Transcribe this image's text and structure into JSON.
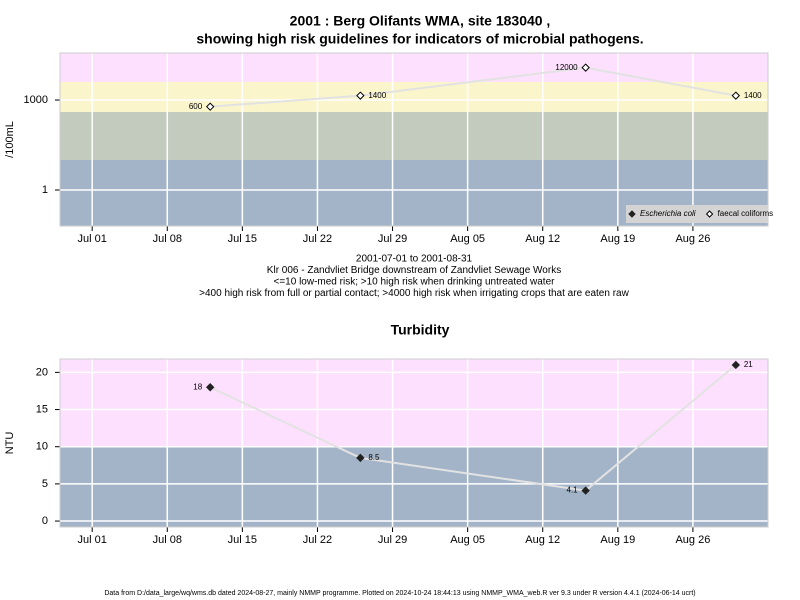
{
  "chart_data": [
    {
      "type": "line",
      "title": [
        "2001 : Berg Olifants WMA, site 183040 ,",
        "showing high risk guidelines for indicators of microbial pathogens."
      ],
      "ylabel": "/100mL",
      "caption": [
        "2001-07-01 to 2001-08-31",
        "Klr 006 - Zandvliet Bridge downstream of Zandvliet Sewage Works",
        "<=10 low-med risk; >10 high risk when drinking untreated water",
        ">400 high risk from full or partial contact; >4000 high risk when irrigating crops that are eaten raw"
      ],
      "x": [
        "2001-07-12",
        "2001-07-26",
        "2001-08-16",
        "2001-08-30"
      ],
      "xlim": [
        "2001-06-28",
        "2001-09-02"
      ],
      "xticks": [
        {
          "value": "2001-07-01",
          "label": "Jul 01"
        },
        {
          "value": "2001-07-08",
          "label": "Jul 08"
        },
        {
          "value": "2001-07-15",
          "label": "Jul 15"
        },
        {
          "value": "2001-07-22",
          "label": "Jul 22"
        },
        {
          "value": "2001-07-29",
          "label": "Jul 29"
        },
        {
          "value": "2001-08-05",
          "label": "Aug 05"
        },
        {
          "value": "2001-08-12",
          "label": "Aug 12"
        },
        {
          "value": "2001-08-19",
          "label": "Aug 19"
        },
        {
          "value": "2001-08-26",
          "label": "Aug 26"
        }
      ],
      "ylog": true,
      "ylim": [
        0.063,
        37000
      ],
      "yticks": [
        1,
        1000
      ],
      "thresholds": [
        10,
        400,
        4000
      ],
      "band_colors": [
        "#a3b4c9",
        "#c2cbbd",
        "#fbf5cc",
        "#fde0fd"
      ],
      "grid": true,
      "legend": "bottom-right",
      "series": [
        {
          "name": "Escherichia coli",
          "color": "#222222",
          "marker": "filled",
          "values": [
            null,
            null,
            null,
            null
          ]
        },
        {
          "name": "faecal coliforms",
          "color": "#000000",
          "marker": "open",
          "values": [
            600,
            1400,
            12000,
            1400
          ]
        }
      ]
    },
    {
      "type": "line",
      "title": [
        "Turbidity"
      ],
      "ylabel": "NTU",
      "x": [
        "2001-07-12",
        "2001-07-26",
        "2001-08-16",
        "2001-08-30"
      ],
      "xlim": [
        "2001-06-28",
        "2001-09-02"
      ],
      "xticks": [
        {
          "value": "2001-07-01",
          "label": "Jul 01"
        },
        {
          "value": "2001-07-08",
          "label": "Jul 08"
        },
        {
          "value": "2001-07-15",
          "label": "Jul 15"
        },
        {
          "value": "2001-07-22",
          "label": "Jul 22"
        },
        {
          "value": "2001-07-29",
          "label": "Jul 29"
        },
        {
          "value": "2001-08-05",
          "label": "Aug 05"
        },
        {
          "value": "2001-08-12",
          "label": "Aug 12"
        },
        {
          "value": "2001-08-19",
          "label": "Aug 19"
        },
        {
          "value": "2001-08-26",
          "label": "Aug 26"
        }
      ],
      "ylog": false,
      "ylim": [
        -0.8,
        21.8
      ],
      "yticks": [
        0,
        5,
        10,
        15,
        20
      ],
      "thresholds": [
        10
      ],
      "band_colors": [
        "#a3b4c9",
        "#fde0fd"
      ],
      "grid": true,
      "series": [
        {
          "name": "Turbidity",
          "color": "#222222",
          "marker": "filled",
          "values": [
            18,
            8.5,
            4.1,
            21
          ]
        }
      ]
    }
  ],
  "footer": "Data from D:/data_large/wq/wms.db dated 2024-08-27, mainly NMMP programme. Plotted on 2024-10-24 18:44:13 using NMMP_WMA_web.R ver 9.3 under R version 4.4.1 (2024-06-14 ucrt)"
}
